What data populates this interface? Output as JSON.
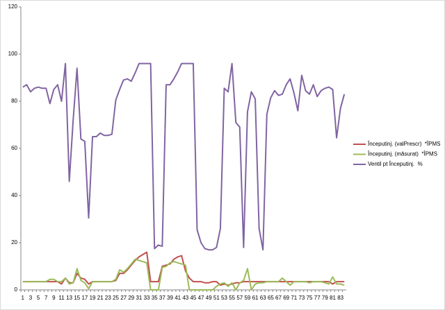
{
  "chart_data": {
    "type": "line",
    "categories": [
      "1",
      null,
      "3",
      null,
      "5",
      null,
      "7",
      null,
      "9",
      null,
      "11",
      null,
      "13",
      null,
      "15",
      null,
      "17",
      null,
      "19",
      null,
      "21",
      null,
      "23",
      null,
      "25",
      null,
      "27",
      null,
      "29",
      null,
      "31",
      null,
      "33",
      null,
      "35",
      null,
      "37",
      null,
      "39",
      null,
      "41",
      null,
      "43",
      null,
      "45",
      null,
      "47",
      null,
      "49",
      null,
      "51",
      null,
      "53",
      null,
      "55",
      null,
      "57",
      null,
      "59",
      null,
      "61",
      null,
      "63",
      null,
      "65",
      null,
      "67",
      null,
      "69",
      null,
      "71",
      null,
      "73",
      null,
      "75",
      null,
      "77",
      null,
      "79",
      null,
      "81",
      null,
      "83",
      null
    ],
    "series": [
      {
        "name": "Începutinj. (valPrescr)  *ÎPMS",
        "color": "#c0504d",
        "values": [
          3.5,
          3.5,
          3.5,
          3.5,
          3.5,
          3.5,
          3.5,
          3.5,
          3.5,
          3.5,
          2.5,
          5,
          3,
          3,
          7,
          5,
          4.5,
          2.5,
          3.5,
          3.5,
          3.5,
          3.5,
          3.5,
          3.5,
          4,
          7,
          7,
          8.5,
          10.5,
          12.5,
          14,
          15,
          16,
          3.5,
          3.5,
          3.5,
          10,
          10.5,
          11,
          13,
          14,
          14.5,
          8,
          5,
          3.5,
          3.5,
          3.5,
          3,
          3,
          3.5,
          3.5,
          2,
          2.5,
          2,
          2.5,
          3,
          3,
          3.5,
          3.5,
          3.5,
          3.5,
          3.5,
          3.5,
          3.5,
          3.5,
          3.5,
          3.5,
          3.5,
          3.5,
          3.5,
          3.5,
          3.5,
          3.5,
          3.5,
          3.5,
          3.5,
          3.5,
          3.5,
          3.5,
          3.5,
          2.5,
          3.5,
          3.5,
          3.5
        ]
      },
      {
        "name": "Începutinj. (măsurat)  *ÎPMS",
        "color": "#9bbb59",
        "values": [
          3.5,
          3.5,
          3.5,
          3.5,
          3.5,
          3.5,
          3.5,
          4.5,
          4.5,
          3.5,
          3.5,
          5,
          2.5,
          3,
          9,
          4,
          3,
          0.5,
          3.5,
          3.5,
          3.5,
          3.5,
          3.5,
          3.5,
          4.5,
          8.5,
          7.5,
          9,
          11,
          13,
          12.5,
          12,
          11.5,
          0,
          0,
          0,
          9.5,
          10,
          11.5,
          12,
          11.5,
          11,
          10.5,
          0,
          0,
          0,
          0,
          0,
          0,
          0,
          1.5,
          2.5,
          3,
          1.5,
          3,
          0,
          3,
          4,
          9,
          0,
          2.5,
          3,
          3,
          3.5,
          3.5,
          3.5,
          3.5,
          5,
          3.5,
          2,
          3.5,
          3.5,
          3.5,
          3.5,
          3,
          3.5,
          3.5,
          3.5,
          3,
          2.5,
          5.5,
          2.5,
          2.5,
          2
        ]
      },
      {
        "name": "Ventil pt Începutinj.  %",
        "color": "#8064a2",
        "values": [
          86,
          87,
          84,
          85.5,
          86,
          85.5,
          85.5,
          79,
          85,
          87,
          80,
          96,
          46,
          72,
          94,
          64,
          63,
          30.5,
          65,
          65,
          66.5,
          65.5,
          65.5,
          66,
          80.5,
          85,
          89,
          89.5,
          88.5,
          92,
          96,
          96,
          96,
          96,
          17.5,
          19,
          18.5,
          87,
          87,
          89.5,
          92.5,
          96,
          96,
          96,
          96,
          25.5,
          20,
          17.5,
          17,
          17,
          18,
          26,
          85.5,
          84,
          96,
          71,
          69,
          18,
          75.5,
          84,
          81,
          26,
          17,
          74.5,
          81.5,
          84.5,
          82.5,
          83,
          87,
          89.5,
          83.5,
          76,
          91,
          84.5,
          83,
          87,
          82,
          84.5,
          85.5,
          86,
          85,
          64.5,
          77,
          83
        ]
      }
    ],
    "ylim": [
      0,
      120
    ],
    "yticks": [
      0,
      20,
      40,
      60,
      80,
      100,
      120
    ],
    "grid": false,
    "legend": "right"
  }
}
